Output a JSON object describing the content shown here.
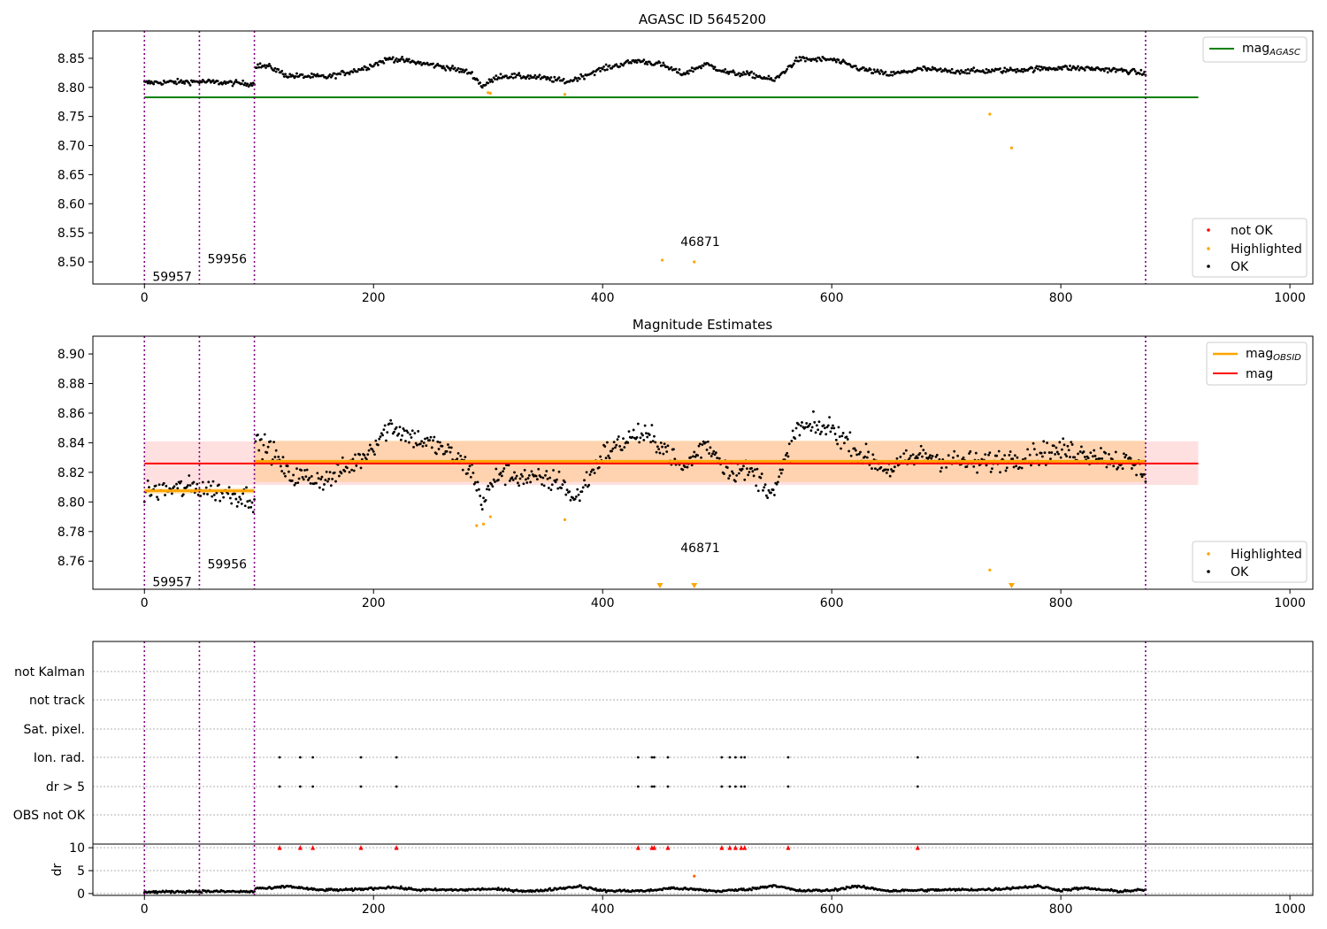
{
  "chart_data": [
    {
      "type": "scatter",
      "title": "AGASC ID 5645200",
      "xlim": [
        -45,
        1020
      ],
      "ylim": [
        8.462,
        8.897
      ],
      "xticks": [
        0,
        200,
        400,
        600,
        800,
        1000
      ],
      "yticks": [
        8.5,
        8.55,
        8.6,
        8.65,
        8.7,
        8.75,
        8.8,
        8.85
      ],
      "ytick_labels": [
        "8.50",
        "8.55",
        "8.60",
        "8.65",
        "8.70",
        "8.75",
        "8.80",
        "8.85"
      ],
      "obsid_boundaries": [
        0,
        48,
        96,
        874
      ],
      "obsid_labels": [
        {
          "text": "59957",
          "x": 7,
          "y": 8.475
        },
        {
          "text": "59956",
          "x": 55,
          "y": 8.505
        },
        {
          "text": "46871",
          "x": 468,
          "y": 8.535
        }
      ],
      "mag_agasc_line": {
        "y": 8.783,
        "x": [
          0,
          920
        ]
      },
      "highlighted_points": [
        [
          300,
          8.791
        ],
        [
          302,
          8.79
        ],
        [
          367,
          8.788
        ],
        [
          452,
          8.503
        ],
        [
          480,
          8.5
        ],
        [
          738,
          8.754
        ],
        [
          757,
          8.696
        ]
      ],
      "ok_trend": [
        [
          0,
          8.808
        ],
        [
          48,
          8.81
        ],
        [
          96,
          8.806
        ],
        [
          97,
          8.838
        ],
        [
          110,
          8.835
        ],
        [
          125,
          8.82
        ],
        [
          160,
          8.818
        ],
        [
          190,
          8.832
        ],
        [
          215,
          8.85
        ],
        [
          230,
          8.845
        ],
        [
          260,
          8.836
        ],
        [
          285,
          8.825
        ],
        [
          295,
          8.802
        ],
        [
          310,
          8.82
        ],
        [
          340,
          8.818
        ],
        [
          370,
          8.81
        ],
        [
          400,
          8.832
        ],
        [
          430,
          8.846
        ],
        [
          450,
          8.84
        ],
        [
          470,
          8.823
        ],
        [
          490,
          8.84
        ],
        [
          510,
          8.825
        ],
        [
          530,
          8.822
        ],
        [
          550,
          8.812
        ],
        [
          570,
          8.848
        ],
        [
          600,
          8.848
        ],
        [
          625,
          8.832
        ],
        [
          650,
          8.822
        ],
        [
          680,
          8.832
        ],
        [
          700,
          8.828
        ],
        [
          730,
          8.828
        ],
        [
          760,
          8.83
        ],
        [
          800,
          8.834
        ],
        [
          830,
          8.832
        ],
        [
          860,
          8.828
        ],
        [
          874,
          8.823
        ]
      ],
      "legend_upper": [
        {
          "label": "mag",
          "sub": "AGASC",
          "color": "#008000"
        }
      ],
      "legend_lower": [
        {
          "label": "not OK",
          "color": "#ff0000"
        },
        {
          "label": "Highlighted",
          "color": "#ffa500"
        },
        {
          "label": "OK",
          "color": "#000000"
        }
      ]
    },
    {
      "type": "scatter",
      "title": "Magnitude Estimates",
      "xlim": [
        -45,
        1020
      ],
      "ylim": [
        8.741,
        8.912
      ],
      "xticks": [
        0,
        200,
        400,
        600,
        800,
        1000
      ],
      "yticks": [
        8.76,
        8.78,
        8.8,
        8.82,
        8.84,
        8.86,
        8.88,
        8.9
      ],
      "ytick_labels": [
        "8.76",
        "8.78",
        "8.80",
        "8.82",
        "8.84",
        "8.86",
        "8.88",
        "8.90"
      ],
      "obsid_boundaries": [
        0,
        48,
        96,
        874
      ],
      "obsid_labels": [
        {
          "text": "59957",
          "x": 7,
          "y": 8.746
        },
        {
          "text": "59956",
          "x": 55,
          "y": 8.758
        },
        {
          "text": "46871",
          "x": 468,
          "y": 8.769
        }
      ],
      "mag_line": {
        "y": 8.826,
        "x": [
          0,
          920
        ]
      },
      "mag_band": [
        8.8115,
        8.841
      ],
      "mag_obsid": [
        {
          "x": [
            0,
            96
          ],
          "y": 8.8075,
          "band": [
            8.8055,
            8.8095
          ]
        },
        {
          "x": [
            96,
            874
          ],
          "y": 8.8275,
          "band": [
            8.8135,
            8.8415
          ]
        }
      ],
      "highlighted_points": [
        [
          290,
          8.784
        ],
        [
          296,
          8.785
        ],
        [
          302,
          8.79
        ],
        [
          367,
          8.788
        ],
        [
          738,
          8.754
        ]
      ],
      "highlighted_offscale": [
        450,
        480,
        757
      ],
      "ok_trend": [
        [
          0,
          8.807
        ],
        [
          48,
          8.81
        ],
        [
          96,
          8.802
        ],
        [
          97,
          8.84
        ],
        [
          110,
          8.836
        ],
        [
          125,
          8.818
        ],
        [
          160,
          8.815
        ],
        [
          190,
          8.83
        ],
        [
          215,
          8.852
        ],
        [
          230,
          8.845
        ],
        [
          260,
          8.836
        ],
        [
          285,
          8.822
        ],
        [
          295,
          8.8
        ],
        [
          310,
          8.82
        ],
        [
          340,
          8.815
        ],
        [
          365,
          8.814
        ],
        [
          375,
          8.8
        ],
        [
          400,
          8.832
        ],
        [
          430,
          8.846
        ],
        [
          450,
          8.84
        ],
        [
          470,
          8.822
        ],
        [
          490,
          8.84
        ],
        [
          510,
          8.822
        ],
        [
          530,
          8.82
        ],
        [
          550,
          8.806
        ],
        [
          570,
          8.85
        ],
        [
          600,
          8.85
        ],
        [
          625,
          8.832
        ],
        [
          650,
          8.822
        ],
        [
          680,
          8.832
        ],
        [
          700,
          8.828
        ],
        [
          730,
          8.826
        ],
        [
          760,
          8.83
        ],
        [
          800,
          8.835
        ],
        [
          830,
          8.832
        ],
        [
          860,
          8.826
        ],
        [
          874,
          8.82
        ]
      ],
      "legend_upper": [
        {
          "label": "mag",
          "sub": "OBSID",
          "color": "#ffa500"
        },
        {
          "label": "mag",
          "sub": "",
          "color": "#ff0000"
        }
      ],
      "legend_lower": [
        {
          "label": "Highlighted",
          "color": "#ffa500"
        },
        {
          "label": "OK",
          "color": "#000000"
        }
      ]
    },
    {
      "type": "scatter",
      "xlim": [
        -45,
        1020
      ],
      "xticks": [
        0,
        200,
        400,
        600,
        800,
        1000
      ],
      "obsid_boundaries": [
        0,
        48,
        96,
        874
      ],
      "flag_rows": [
        "not Kalman",
        "not track",
        "Sat. pixel.",
        "Ion. rad.",
        "dr > 5",
        "OBS not OK"
      ],
      "flag_points": {
        "Ion. rad.": [
          118,
          136,
          147,
          189,
          220,
          431,
          443,
          445,
          457,
          504,
          511,
          516,
          521,
          524,
          562,
          675
        ],
        "dr > 5": [
          118,
          136,
          147,
          189,
          220,
          431,
          443,
          445,
          457,
          504,
          511,
          516,
          521,
          524,
          562,
          675
        ]
      },
      "dr_ylabel": "dr",
      "dr_ylim": [
        -0.4,
        10.8
      ],
      "dr_yticks": [
        0,
        5,
        10
      ],
      "dr_capped": {
        "value": 10,
        "x": [
          118,
          136,
          147,
          189,
          220,
          431,
          443,
          445,
          457,
          504,
          511,
          516,
          521,
          524,
          562,
          675
        ]
      },
      "dr_outliers": [
        [
          480,
          3.8
        ]
      ],
      "dr_trend": [
        [
          0,
          0.3
        ],
        [
          48,
          0.5
        ],
        [
          96,
          0.4
        ],
        [
          97,
          1.2
        ],
        [
          110,
          1.1
        ],
        [
          125,
          1.6
        ],
        [
          150,
          0.8
        ],
        [
          180,
          0.8
        ],
        [
          215,
          1.4
        ],
        [
          240,
          0.8
        ],
        [
          280,
          0.8
        ],
        [
          300,
          1.0
        ],
        [
          340,
          0.5
        ],
        [
          380,
          1.6
        ],
        [
          400,
          0.6
        ],
        [
          440,
          0.6
        ],
        [
          460,
          1.2
        ],
        [
          480,
          0.9
        ],
        [
          500,
          0.5
        ],
        [
          530,
          1.0
        ],
        [
          550,
          1.8
        ],
        [
          570,
          0.6
        ],
        [
          600,
          0.7
        ],
        [
          620,
          1.6
        ],
        [
          650,
          0.6
        ],
        [
          700,
          0.8
        ],
        [
          740,
          0.9
        ],
        [
          780,
          1.6
        ],
        [
          800,
          0.7
        ],
        [
          820,
          1.2
        ],
        [
          850,
          0.5
        ],
        [
          874,
          0.8
        ]
      ]
    }
  ]
}
